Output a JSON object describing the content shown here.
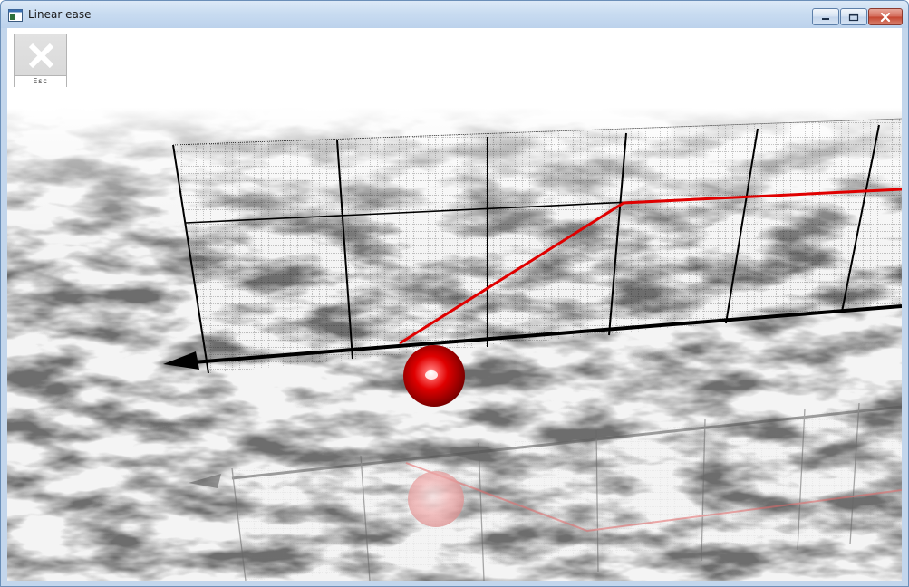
{
  "window": {
    "title": "Linear ease",
    "icon": "app-window-icon",
    "controls": {
      "minimize": "minimize-icon",
      "maximize": "maximize-icon",
      "close": "close-icon"
    }
  },
  "esc_button": {
    "label": "Esc",
    "icon": "close-x-icon"
  },
  "scene": {
    "ball_color": "#e00000",
    "curve_color": "#e00000",
    "axis_color": "#000000",
    "floor": "marble"
  }
}
